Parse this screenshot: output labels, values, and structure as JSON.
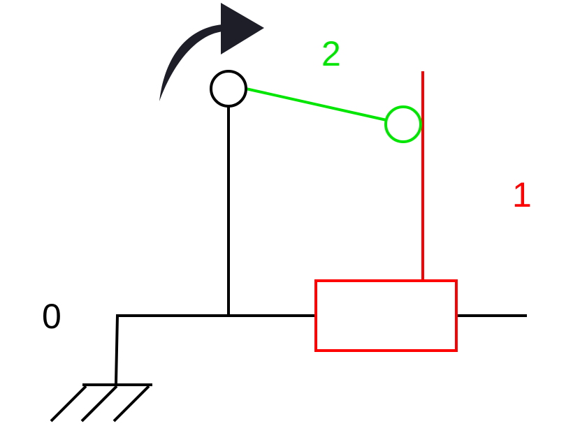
{
  "diagram": {
    "labels": {
      "ground": "0",
      "slider": "1",
      "crank": "2"
    },
    "colors": {
      "ground": "#000000",
      "slider": "#ff0000",
      "crank": "#00e600",
      "arrow": "#1e1e28",
      "background": "#ffffff"
    },
    "icons": {
      "rotation": "curved-arrow-icon",
      "fixed_support": "ground-hatch-icon"
    }
  }
}
